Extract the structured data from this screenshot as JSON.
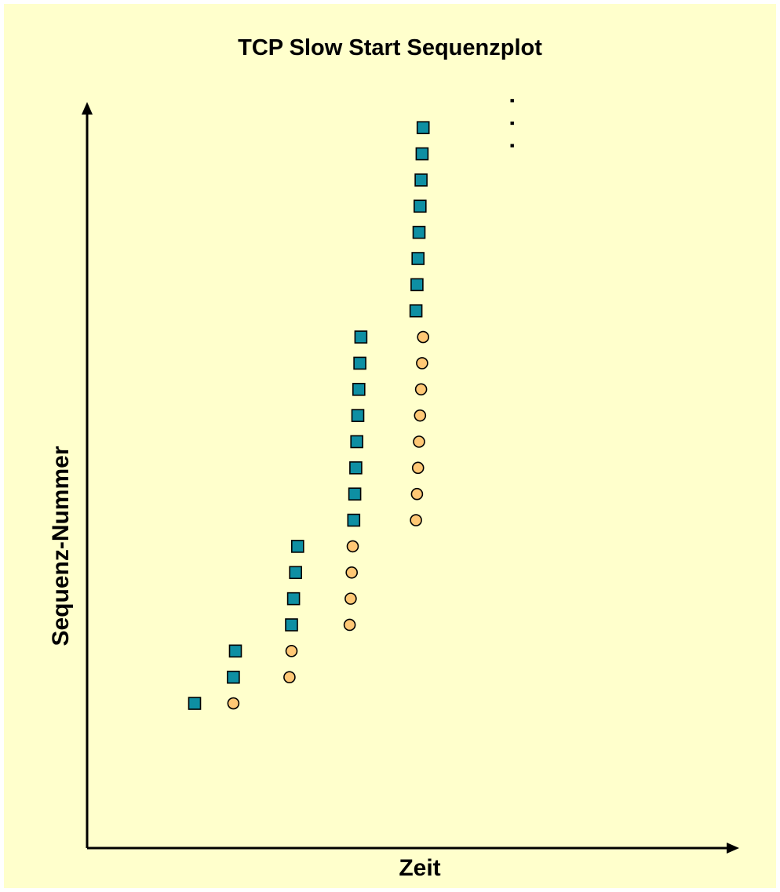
{
  "chart_data": {
    "type": "scatter",
    "title": "TCP Slow Start Sequenzplot",
    "xlabel": "Zeit",
    "ylabel": "Sequenz-Nummer",
    "continuation": ". . .",
    "colors": {
      "background": "#FFFFCC",
      "segment_fill": "#0E8FA3",
      "ack_fill": "#FFC875",
      "outline": "#000000"
    },
    "series": [
      {
        "kind": "segment",
        "shape": "square",
        "points": [
          {
            "x": 1.0,
            "y": 1
          },
          {
            "x": 1.38,
            "y": 2
          },
          {
            "x": 1.4,
            "y": 3
          },
          {
            "x": 1.95,
            "y": 4
          },
          {
            "x": 1.97,
            "y": 5
          },
          {
            "x": 1.99,
            "y": 6
          },
          {
            "x": 2.01,
            "y": 7
          },
          {
            "x": 2.56,
            "y": 8
          },
          {
            "x": 2.57,
            "y": 9
          },
          {
            "x": 2.58,
            "y": 10
          },
          {
            "x": 2.59,
            "y": 11
          },
          {
            "x": 2.6,
            "y": 12
          },
          {
            "x": 2.61,
            "y": 13
          },
          {
            "x": 2.62,
            "y": 14
          },
          {
            "x": 2.63,
            "y": 15
          },
          {
            "x": 3.17,
            "y": 16
          },
          {
            "x": 3.18,
            "y": 17
          },
          {
            "x": 3.19,
            "y": 18
          },
          {
            "x": 3.2,
            "y": 19
          },
          {
            "x": 3.21,
            "y": 20
          },
          {
            "x": 3.22,
            "y": 21
          },
          {
            "x": 3.23,
            "y": 22
          },
          {
            "x": 3.24,
            "y": 23
          }
        ]
      },
      {
        "kind": "ack",
        "shape": "circle",
        "points": [
          {
            "x": 1.38,
            "y": 1
          },
          {
            "x": 1.93,
            "y": 2
          },
          {
            "x": 1.95,
            "y": 3
          },
          {
            "x": 2.52,
            "y": 4
          },
          {
            "x": 2.53,
            "y": 5
          },
          {
            "x": 2.54,
            "y": 6
          },
          {
            "x": 2.55,
            "y": 7
          },
          {
            "x": 3.17,
            "y": 8
          },
          {
            "x": 3.18,
            "y": 9
          },
          {
            "x": 3.19,
            "y": 10
          },
          {
            "x": 3.2,
            "y": 11
          },
          {
            "x": 3.21,
            "y": 12
          },
          {
            "x": 3.22,
            "y": 13
          },
          {
            "x": 3.23,
            "y": 14
          },
          {
            "x": 3.24,
            "y": 15
          }
        ]
      }
    ],
    "xlim": [
      0,
      5
    ],
    "ylim": [
      -4.5,
      26.5
    ],
    "grid": false,
    "legend": "none"
  }
}
